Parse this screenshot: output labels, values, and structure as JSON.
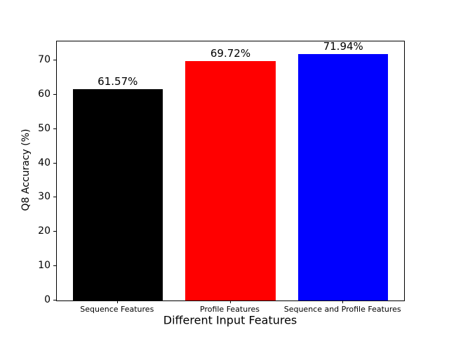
{
  "chart_data": {
    "type": "bar",
    "title": "",
    "xlabel": "Different Input Features",
    "ylabel": "Q8 Accuracy (%)",
    "categories": [
      "Sequence Features",
      "Profile Features",
      "Sequence and Profile Features"
    ],
    "values": [
      61.57,
      69.72,
      71.94
    ],
    "value_labels": [
      "61.57%",
      "69.72%",
      "71.94%"
    ],
    "bar_colors": [
      "#000000",
      "#ff0000",
      "#0000ff"
    ],
    "ylim": [
      0,
      75.54
    ],
    "yticks": [
      0,
      10,
      20,
      30,
      40,
      50,
      60,
      70
    ],
    "grid": false,
    "legend": null,
    "plot_background": "#ffffff",
    "frame_color": "#000000"
  }
}
